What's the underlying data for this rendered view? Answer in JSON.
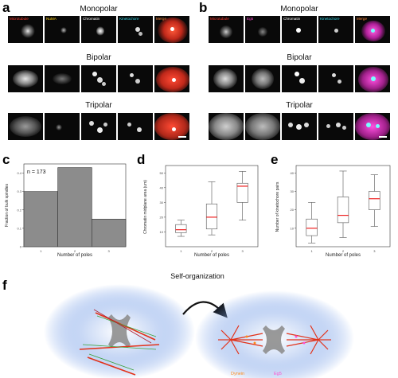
{
  "panels": {
    "a": {
      "label": "a",
      "channels": [
        {
          "name": "Microtubule",
          "color": "#ff3b30"
        },
        {
          "name": "NuMA",
          "color": "#ffd21a"
        },
        {
          "name": "Chromatin",
          "color": "#ffffff"
        },
        {
          "name": "Kinetochore",
          "color": "#32d6e6"
        },
        {
          "name": "Merge",
          "color": "#ff8a3d"
        }
      ],
      "rows": [
        "Monopolar",
        "Bipolar",
        "Tripolar"
      ]
    },
    "b": {
      "label": "b",
      "channels": [
        {
          "name": "Microtubule",
          "color": "#ff3b30"
        },
        {
          "name": "Eg5",
          "color": "#ff4fd0"
        },
        {
          "name": "Chromatin",
          "color": "#ffffff"
        },
        {
          "name": "Kinetochore",
          "color": "#32d6e6"
        },
        {
          "name": "Merge",
          "color": "#ff8a3d"
        }
      ],
      "rows": [
        "Monopolar",
        "Bipolar",
        "Tripolar"
      ]
    },
    "c": {
      "label": "c",
      "annotation": "n = 173"
    },
    "d": {
      "label": "d"
    },
    "e": {
      "label": "e"
    },
    "f": {
      "label": "f",
      "arrow_label": "Self-organization",
      "legend": {
        "dynein": "Dynein",
        "eg5": "Eg5"
      }
    }
  },
  "chart_data": [
    {
      "panel": "c",
      "type": "bar",
      "categories": [
        "1",
        "2",
        "3"
      ],
      "values": [
        0.3,
        0.43,
        0.15
      ],
      "xlabel": "Number of poles",
      "ylabel": "Fraction of bulk spindles",
      "ylim": [
        0,
        0.45
      ],
      "yticks": [
        "0",
        "0.1",
        "0.2",
        "0.3",
        "0.4"
      ],
      "bar_color": "#8c8c8c"
    },
    {
      "panel": "d",
      "type": "box",
      "categories": [
        "1",
        "2",
        "3"
      ],
      "series": [
        {
          "whisker_low": 7,
          "q1": 9.5,
          "median": 11.5,
          "q3": 15,
          "whisker_high": 18
        },
        {
          "whisker_low": 8,
          "q1": 12,
          "median": 20,
          "q3": 29,
          "whisker_high": 44
        },
        {
          "whisker_low": 18,
          "q1": 30,
          "median": 41,
          "q3": 43,
          "whisker_high": 51
        }
      ],
      "xlabel": "Number of poles",
      "ylabel": "Chromatin midplane area (um)",
      "ylim": [
        0,
        55
      ],
      "yticks": [
        "10",
        "20",
        "30",
        "40",
        "50"
      ]
    },
    {
      "panel": "e",
      "type": "box",
      "categories": [
        "1",
        "2",
        "3"
      ],
      "series": [
        {
          "whisker_low": 2,
          "q1": 6,
          "median": 10,
          "q3": 15,
          "whisker_high": 24
        },
        {
          "whisker_low": 5,
          "q1": 13,
          "median": 17,
          "q3": 27,
          "whisker_high": 41
        },
        {
          "whisker_low": 11,
          "q1": 20,
          "median": 26,
          "q3": 30,
          "whisker_high": 39
        }
      ],
      "xlabel": "Number of poles",
      "ylabel": "Number of kinetochore pairs",
      "ylim": [
        0,
        44
      ],
      "yticks": [
        "10",
        "20",
        "30",
        "40"
      ]
    }
  ]
}
